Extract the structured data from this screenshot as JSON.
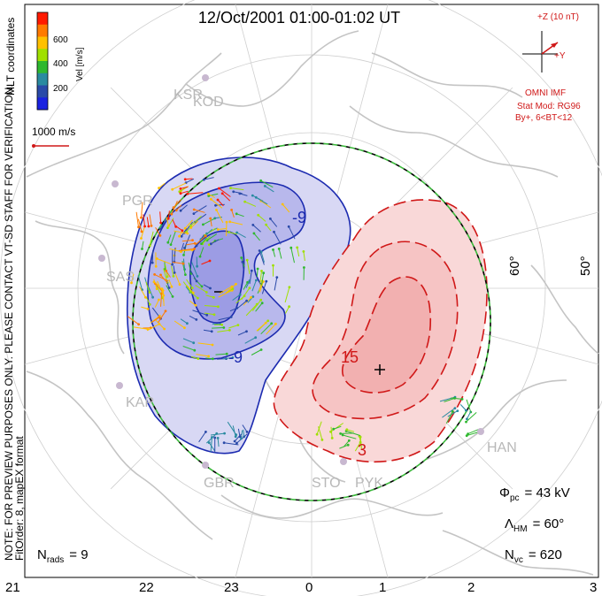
{
  "title": "12/Oct/2001  01:00-01:02  UT",
  "colorbar": {
    "unit_label": "Vel [m/s]",
    "ticks": [
      "600",
      "400",
      "200"
    ],
    "colors": [
      "#ff1a00",
      "#ff7a00",
      "#ffc000",
      "#a0e000",
      "#2fb82f",
      "#2a8aa0",
      "#2a4aa8",
      "#1a22e0"
    ]
  },
  "coord_label": "MLT coordinates",
  "scale_vector_label": "1000 m/s",
  "imf": {
    "z_label": "+Z (10 nT)",
    "y_label": "+Y",
    "source": "OMNI IMF",
    "model_line1": "Stat Mod: RG96",
    "model_line2": "By+, 6<BT<12"
  },
  "note_line1": "NOTE: FOR PREVIEW PURPOSES ONLY. PLEASE CONTACT VT-SD STAFF FOR VERIFICATION.",
  "note_line2": "FitOrder: 8,  mapEX format",
  "mlt_ticks": [
    "21",
    "22",
    "23",
    "0",
    "1",
    "2",
    "3"
  ],
  "latitude_labels": [
    "60°",
    "50°"
  ],
  "contour_labels": {
    "neg": [
      "-9",
      "-9"
    ],
    "pos": [
      "15",
      "3"
    ]
  },
  "stations": [
    "KSR",
    "KOD",
    "PGR",
    "SAS",
    "KAP",
    "GBR",
    "STO",
    "PYK",
    "HAN"
  ],
  "stats": {
    "n_rads_label": "N",
    "n_rads_sub": "rads",
    "n_rads_value": "=  9",
    "phi_label": "Φ",
    "phi_sub": "pc",
    "phi_value": "=  43 kV",
    "lambda_label": "Λ",
    "lambda_sub": "HM",
    "lambda_value": "=  60°",
    "nvc_label": "N",
    "nvc_sub": "vc",
    "nvc_value": "=  620"
  },
  "colors": {
    "negative_fill": "#c8c8f0",
    "negative_line": "#1c2bb0",
    "positive_fill": "#f6c8c8",
    "positive_line": "#d01818",
    "grid": "#c8c8c8",
    "coast": "#c4c4c4",
    "hmb_dash": "#3ab83a"
  }
}
